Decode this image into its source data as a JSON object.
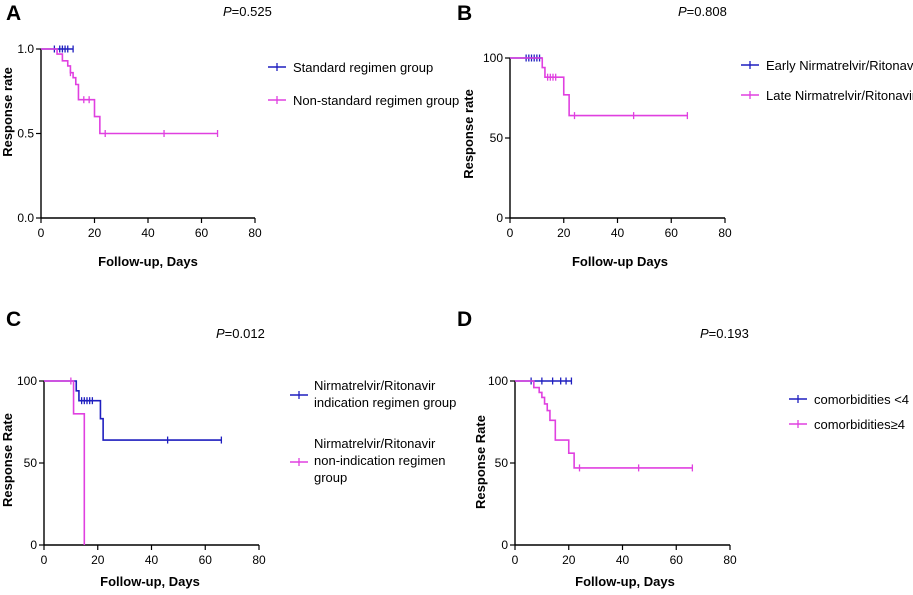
{
  "chart_data": [
    {
      "type": "line",
      "subtype": "kaplan-meier",
      "panel_label": "A",
      "p_prefix": "P",
      "p_value": "=0.525",
      "xlabel": "Follow-up, Days",
      "ylabel": "Response rate",
      "xlim": [
        0,
        80
      ],
      "ylim": [
        0,
        1
      ],
      "xticks": [
        0,
        20,
        40,
        60,
        80
      ],
      "xtick_labels": [
        "0",
        "20",
        "40",
        "60",
        "80"
      ],
      "yticks": [
        0,
        0.5,
        1
      ],
      "ytick_labels": [
        "0.0",
        "0.5",
        "1.0"
      ],
      "series": [
        {
          "name": "Standard regimen group",
          "color": "#1f1fbf",
          "steps": [
            [
              0,
              1.0
            ],
            [
              12,
              1.0
            ]
          ],
          "censored": [
            [
              5,
              1.0
            ],
            [
              7,
              1.0
            ],
            [
              8,
              1.0
            ],
            [
              9,
              1.0
            ],
            [
              10,
              1.0
            ],
            [
              12,
              1.0
            ]
          ]
        },
        {
          "name": "Non-standard regimen group",
          "color": "#e040e0",
          "steps": [
            [
              0,
              1.0
            ],
            [
              6,
              0.97
            ],
            [
              8,
              0.93
            ],
            [
              10,
              0.9
            ],
            [
              11,
              0.86
            ],
            [
              12,
              0.83
            ],
            [
              13,
              0.79
            ],
            [
              14,
              0.7
            ],
            [
              19,
              0.7
            ],
            [
              20,
              0.6
            ],
            [
              22,
              0.5
            ],
            [
              66,
              0.5
            ]
          ],
          "censored": [
            [
              11,
              0.86
            ],
            [
              16,
              0.7
            ],
            [
              18,
              0.7
            ],
            [
              24,
              0.5
            ],
            [
              46,
              0.5
            ],
            [
              66,
              0.5
            ]
          ]
        }
      ]
    },
    {
      "type": "line",
      "subtype": "kaplan-meier",
      "panel_label": "B",
      "p_prefix": "P",
      "p_value": "=0.808",
      "xlabel": "Follow-up Days",
      "ylabel": "Response rate",
      "xlim": [
        0,
        80
      ],
      "ylim": [
        0,
        100
      ],
      "xticks": [
        0,
        20,
        40,
        60,
        80
      ],
      "xtick_labels": [
        "0",
        "20",
        "40",
        "60",
        "80"
      ],
      "yticks": [
        0,
        50,
        100
      ],
      "ytick_labels": [
        "0",
        "50",
        "100"
      ],
      "series": [
        {
          "name": "Early Nirmatrelvir/Ritonavir",
          "color": "#1f1fbf",
          "steps": [
            [
              0,
              100
            ],
            [
              12,
              100
            ]
          ],
          "censored": [
            [
              6,
              100
            ],
            [
              7,
              100
            ],
            [
              8,
              100
            ],
            [
              9,
              100
            ],
            [
              10,
              100
            ],
            [
              11,
              100
            ]
          ]
        },
        {
          "name": "Late Nirmatrelvir/Ritonavir",
          "color": "#e040e0",
          "steps": [
            [
              0,
              100
            ],
            [
              12,
              94
            ],
            [
              13,
              88
            ],
            [
              19,
              88
            ],
            [
              20,
              77
            ],
            [
              22,
              64
            ],
            [
              66,
              64
            ]
          ],
          "censored": [
            [
              14,
              88
            ],
            [
              15,
              88
            ],
            [
              16,
              88
            ],
            [
              17,
              88
            ],
            [
              24,
              64
            ],
            [
              46,
              64
            ],
            [
              66,
              64
            ]
          ]
        }
      ]
    },
    {
      "type": "line",
      "subtype": "kaplan-meier",
      "panel_label": "C",
      "p_prefix": "P",
      "p_value": "=0.012",
      "xlabel": "Follow-up, Days",
      "ylabel": "Response Rate",
      "xlim": [
        0,
        80
      ],
      "ylim": [
        0,
        100
      ],
      "xticks": [
        0,
        20,
        40,
        60,
        80
      ],
      "xtick_labels": [
        "0",
        "20",
        "40",
        "60",
        "80"
      ],
      "yticks": [
        0,
        50,
        100
      ],
      "ytick_labels": [
        "0",
        "50",
        "100"
      ],
      "series": [
        {
          "name": "Nirmatrelvir/Ritonavir indication regimen group",
          "legend_lines": [
            "Nirmatrelvir/Ritonavir",
            "indication regimen group"
          ],
          "color": "#1f1fbf",
          "steps": [
            [
              0,
              100
            ],
            [
              12,
              94
            ],
            [
              13,
              88
            ],
            [
              20,
              88
            ],
            [
              21,
              77
            ],
            [
              22,
              64
            ],
            [
              66,
              64
            ]
          ],
          "censored": [
            [
              14,
              88
            ],
            [
              15,
              88
            ],
            [
              16,
              88
            ],
            [
              17,
              88
            ],
            [
              18,
              88
            ],
            [
              46,
              64
            ],
            [
              66,
              64
            ]
          ]
        },
        {
          "name": "Nirmatrelvir/Ritonavir non-indication regimen group",
          "legend_lines": [
            "Nirmatrelvir/Ritonavir",
            "non-indication regimen",
            "group"
          ],
          "color": "#e040e0",
          "steps": [
            [
              0,
              100
            ],
            [
              11,
              80
            ],
            [
              15,
              80
            ],
            [
              15,
              0
            ]
          ],
          "censored": [
            [
              10,
              100
            ]
          ]
        }
      ]
    },
    {
      "type": "line",
      "subtype": "kaplan-meier",
      "panel_label": "D",
      "p_prefix": "P",
      "p_value": "=0.193",
      "xlabel": "Follow-up, Days",
      "ylabel": "Response Rate",
      "xlim": [
        0,
        80
      ],
      "ylim": [
        0,
        100
      ],
      "xticks": [
        0,
        20,
        40,
        60,
        80
      ],
      "xtick_labels": [
        "0",
        "20",
        "40",
        "60",
        "80"
      ],
      "yticks": [
        0,
        50,
        100
      ],
      "ytick_labels": [
        "0",
        "50",
        "100"
      ],
      "series": [
        {
          "name": "comorbidities <4",
          "color": "#1f1fbf",
          "steps": [
            [
              0,
              100
            ],
            [
              21,
              100
            ]
          ],
          "censored": [
            [
              6,
              100
            ],
            [
              10,
              100
            ],
            [
              14,
              100
            ],
            [
              17,
              100
            ],
            [
              19,
              100
            ],
            [
              21,
              100
            ]
          ]
        },
        {
          "name": "comorbidities≥4",
          "color": "#e040e0",
          "steps": [
            [
              0,
              100
            ],
            [
              7,
              96
            ],
            [
              9,
              93
            ],
            [
              10,
              90
            ],
            [
              11,
              86
            ],
            [
              12,
              82
            ],
            [
              13,
              76
            ],
            [
              15,
              64
            ],
            [
              19,
              64
            ],
            [
              20,
              56
            ],
            [
              22,
              47
            ],
            [
              66,
              47
            ]
          ],
          "censored": [
            [
              24,
              47
            ],
            [
              46,
              47
            ],
            [
              66,
              47
            ]
          ]
        }
      ]
    }
  ]
}
